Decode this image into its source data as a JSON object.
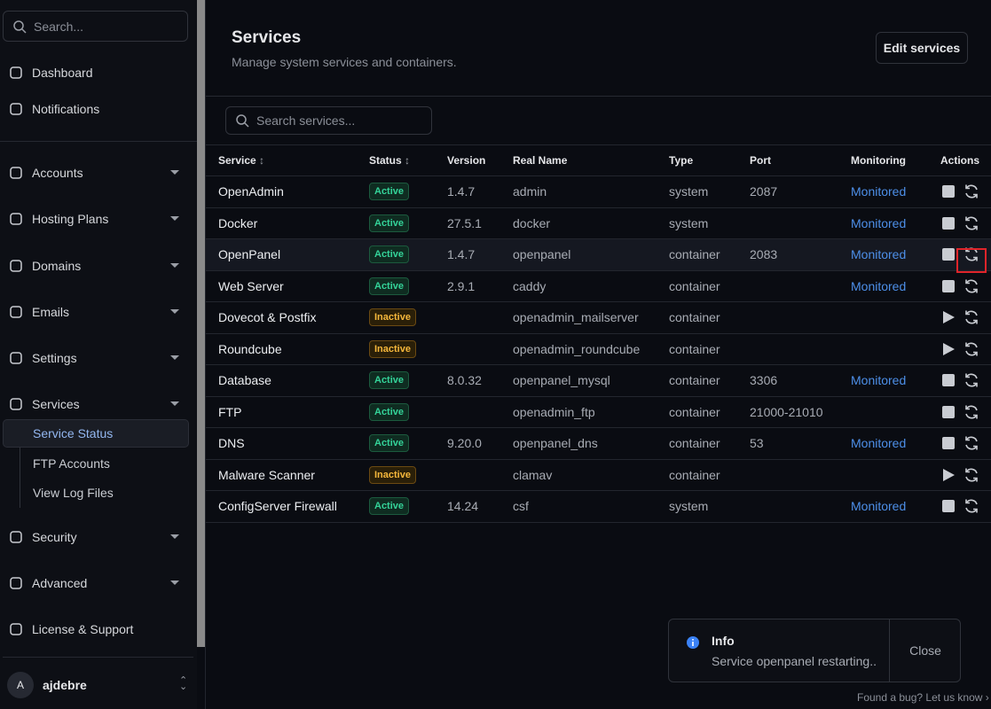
{
  "sidebar": {
    "search_placeholder": "Search...",
    "nav": [
      "Dashboard",
      "Notifications",
      "Accounts",
      "Hosting Plans",
      "Domains",
      "Emails",
      "Settings",
      "Services",
      "Security",
      "Advanced",
      "License & Support"
    ],
    "sub": [
      "Service Status",
      "FTP Accounts",
      "View Log Files"
    ],
    "user": {
      "avatar": "A",
      "name": "ajdebre"
    }
  },
  "header": {
    "title": "Services",
    "subtitle": "Manage system services and containers.",
    "button": "Edit services"
  },
  "search_placeholder": "Search services...",
  "table": {
    "columns": [
      "Service",
      "Status",
      "Version",
      "Real Name",
      "Type",
      "Port",
      "Monitoring",
      "Actions"
    ],
    "rows": [
      [
        "OpenAdmin",
        "Active",
        "1.4.7",
        "admin",
        "system",
        "2087",
        "Monitored"
      ],
      [
        "Docker",
        "Active",
        "27.5.1",
        "docker",
        "system",
        null,
        "Monitored"
      ],
      [
        "OpenPanel",
        "Active",
        "1.4.7",
        "openpanel",
        "container",
        "2083",
        "Monitored"
      ],
      [
        "Web Server",
        "Active",
        "2.9.1",
        "caddy",
        "container",
        null,
        "Monitored"
      ],
      [
        "Dovecot & Postfix",
        "Inactive",
        null,
        "openadmin_mailserver",
        "container",
        null,
        null
      ],
      [
        "Roundcube",
        "Inactive",
        null,
        "openadmin_roundcube",
        "container",
        null,
        null
      ],
      [
        "Database",
        "Active",
        "8.0.32",
        "openpanel_mysql",
        "container",
        "3306",
        "Monitored"
      ],
      [
        "FTP",
        "Active",
        null,
        "openadmin_ftp",
        "container",
        "21000-21010",
        null
      ],
      [
        "DNS",
        "Active",
        "9.20.0",
        "openpanel_dns",
        "container",
        "53",
        "Monitored"
      ],
      [
        "Malware Scanner",
        "Inactive",
        null,
        "clamav",
        "container",
        null,
        null
      ],
      [
        "ConfigServer Firewall",
        "Active",
        "14.24",
        "csf",
        "system",
        null,
        "Monitored"
      ]
    ]
  },
  "toast": {
    "title": "Info",
    "message": "Service openpanel restarting..",
    "close": "Close"
  },
  "footer": "Found a bug? Let us know"
}
